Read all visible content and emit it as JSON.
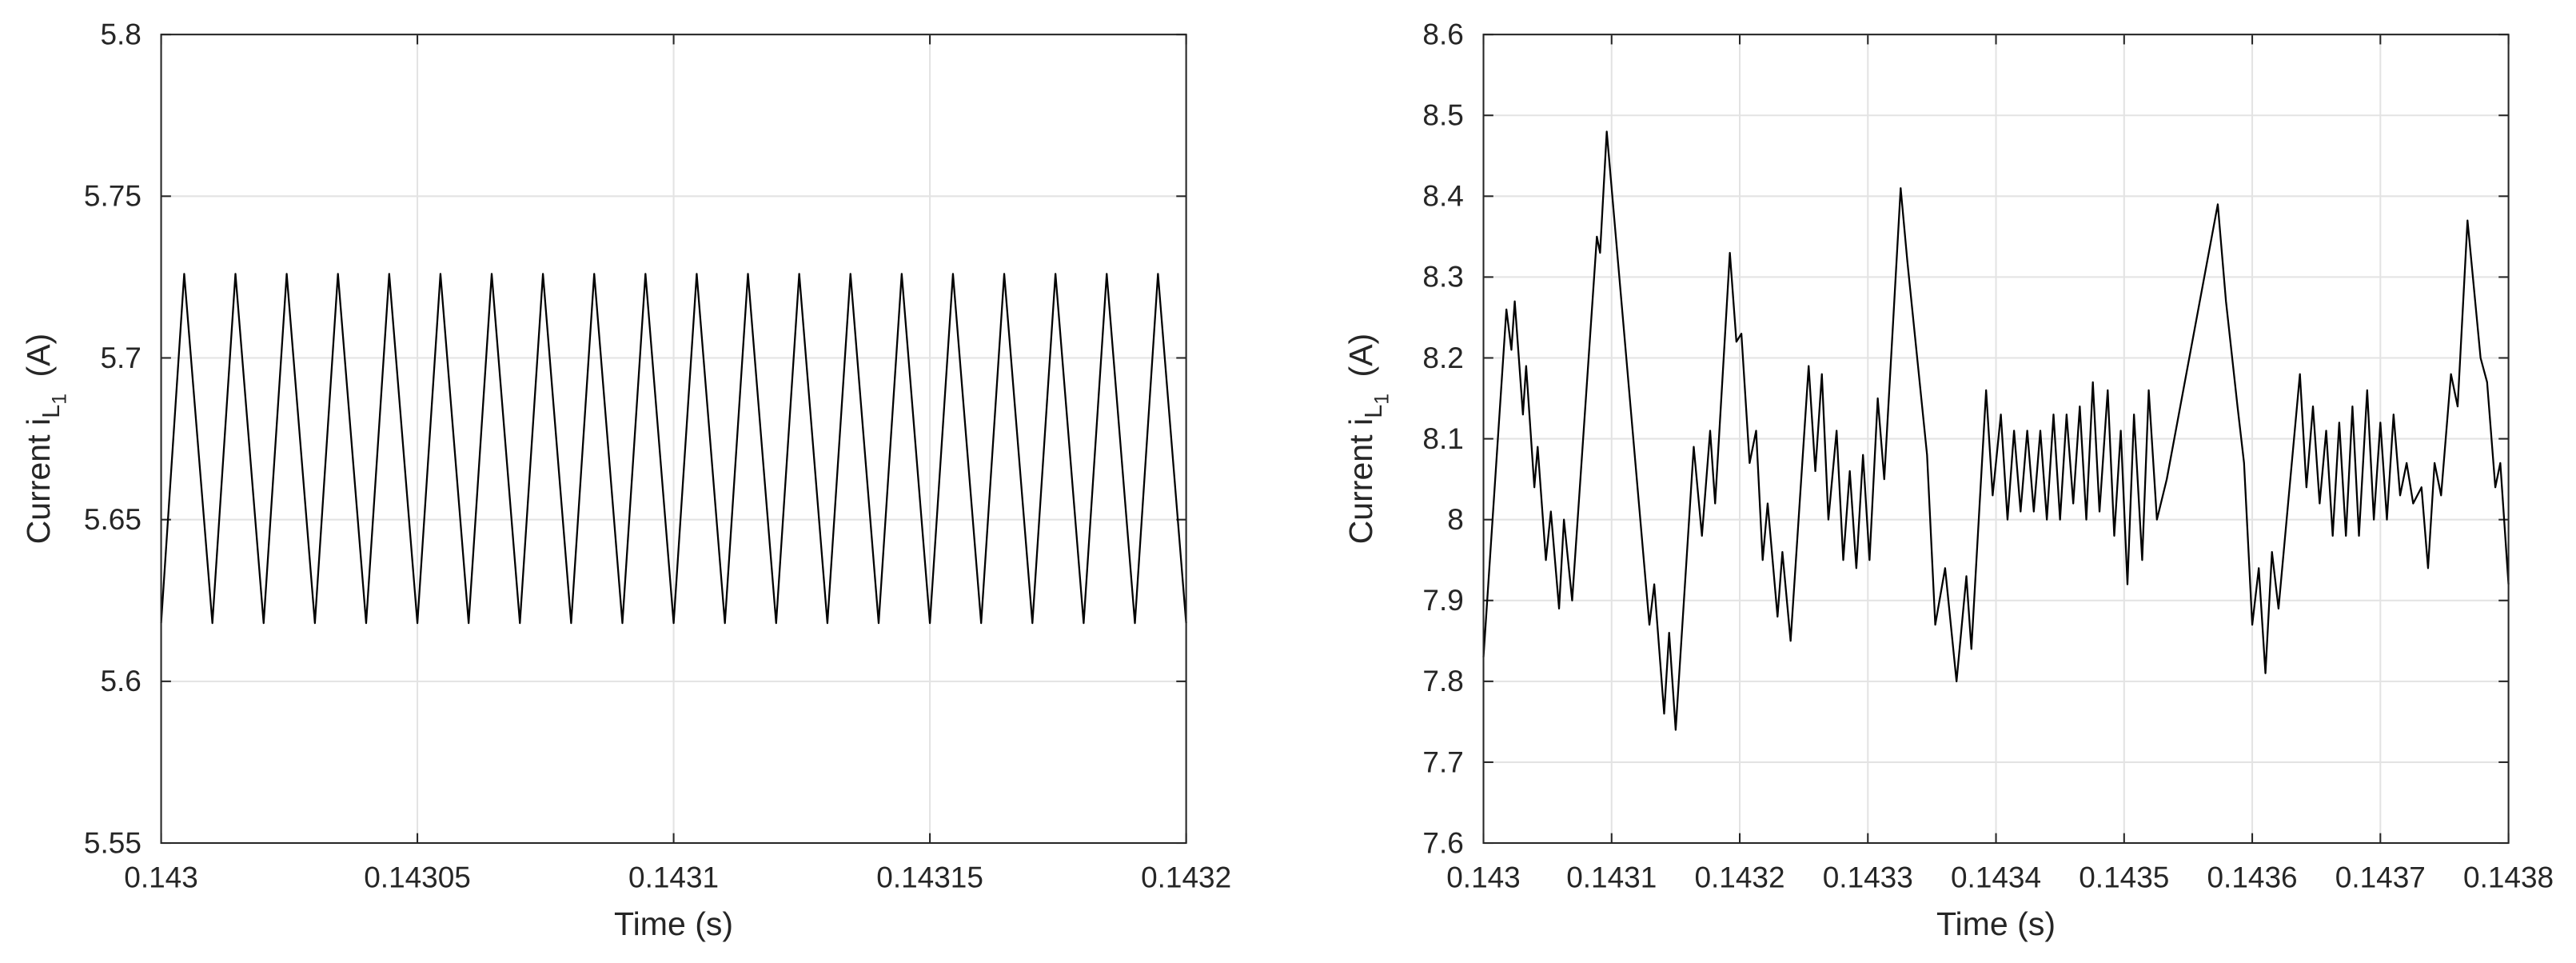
{
  "chart_data": [
    {
      "type": "line",
      "x": [
        0.143,
        0.1430045,
        0.14301,
        0.1430145,
        0.14302,
        0.1430245,
        0.14303,
        0.1430345,
        0.14304,
        0.1430445,
        0.14305,
        0.1430545,
        0.14306,
        0.1430645,
        0.14307,
        0.1430745,
        0.14308,
        0.1430845,
        0.14309,
        0.1430945,
        0.1431,
        0.1431045,
        0.14311,
        0.1431145,
        0.14312,
        0.1431245,
        0.14313,
        0.1431345,
        0.14314,
        0.1431445,
        0.14315,
        0.1431545,
        0.14316,
        0.1431645,
        0.14317,
        0.1431745,
        0.14318,
        0.1431845,
        0.14319,
        0.1431945,
        0.1432
      ],
      "series": [
        {
          "color": "#000000",
          "values": [
            5.618,
            5.726,
            5.618,
            5.726,
            5.618,
            5.726,
            5.618,
            5.726,
            5.618,
            5.726,
            5.618,
            5.726,
            5.618,
            5.726,
            5.618,
            5.726,
            5.618,
            5.726,
            5.618,
            5.726,
            5.618,
            5.726,
            5.618,
            5.726,
            5.618,
            5.726,
            5.618,
            5.726,
            5.618,
            5.726,
            5.618,
            5.726,
            5.618,
            5.726,
            5.618,
            5.726,
            5.618,
            5.726,
            5.618,
            5.726,
            5.618
          ]
        }
      ],
      "xlim": [
        0.143,
        0.1432
      ],
      "ylim": [
        5.55,
        5.8
      ],
      "xticks": [
        0.143,
        0.14305,
        0.1431,
        0.14315,
        0.1432
      ],
      "yticks": [
        5.55,
        5.6,
        5.65,
        5.7,
        5.75,
        5.8
      ],
      "xlabel": "Time (s)",
      "ylabel": [
        "Current i",
        "L",
        "1",
        "(A)"
      ],
      "grid": true
    },
    {
      "type": "line",
      "x": [
        0.143,
        0.1430179,
        0.1430218,
        0.1430244,
        0.1430308,
        0.1430333,
        0.1430397,
        0.1430423,
        0.1430487,
        0.1430526,
        0.143059,
        0.1430628,
        0.1430692,
        0.1430885,
        0.143091,
        0.1430962,
        0.1431295,
        0.1431333,
        0.143141,
        0.1431449,
        0.14315,
        0.1431641,
        0.1431705,
        0.1431769,
        0.1431808,
        0.1431923,
        0.1431974,
        0.1432013,
        0.1432077,
        0.1432128,
        0.1432179,
        0.1432218,
        0.1432295,
        0.1432333,
        0.1432397,
        0.1432538,
        0.143259,
        0.1432641,
        0.1432692,
        0.1432756,
        0.1432808,
        0.1432859,
        0.143291,
        0.1432962,
        0.1433013,
        0.1433077,
        0.1433128,
        0.1433256,
        0.1433308,
        0.1433462,
        0.1433526,
        0.1433603,
        0.1433692,
        0.1433769,
        0.1433808,
        0.1433923,
        0.1433974,
        0.1434038,
        0.143409,
        0.1434141,
        0.1434192,
        0.1434244,
        0.1434295,
        0.1434346,
        0.1434397,
        0.1434449,
        0.14345,
        0.1434551,
        0.1434603,
        0.1434654,
        0.1434705,
        0.1434756,
        0.1434808,
        0.1434872,
        0.1434923,
        0.1434974,
        0.1435026,
        0.1435077,
        0.1435141,
        0.1435192,
        0.1435256,
        0.1435333,
        0.1435731,
        0.1435795,
        0.1435885,
        0.1435936,
        0.1436,
        0.1436051,
        0.1436103,
        0.1436154,
        0.1436205,
        0.1436372,
        0.1436423,
        0.1436474,
        0.1436526,
        0.1436577,
        0.1436628,
        0.1436679,
        0.1436731,
        0.1436782,
        0.1436833,
        0.1436897,
        0.1436949,
        0.1437,
        0.1437051,
        0.1437103,
        0.1437154,
        0.1437205,
        0.1437256,
        0.1437321,
        0.1437372,
        0.1437423,
        0.1437474,
        0.1437551,
        0.1437603,
        0.143768,
        0.1437782,
        0.1437833,
        0.1437897,
        0.1437936,
        0.1438
      ],
      "series": [
        {
          "color": "#000000",
          "values": [
            7.83,
            8.26,
            8.21,
            8.27,
            8.13,
            8.19,
            8.04,
            8.09,
            7.95,
            8.01,
            7.89,
            8.0,
            7.9,
            8.35,
            8.33,
            8.48,
            7.87,
            7.92,
            7.76,
            7.86,
            7.74,
            8.09,
            7.98,
            8.11,
            8.02,
            8.33,
            8.22,
            8.23,
            8.07,
            8.11,
            7.95,
            8.02,
            7.88,
            7.96,
            7.85,
            8.19,
            8.06,
            8.18,
            8.0,
            8.11,
            7.95,
            8.06,
            7.94,
            8.08,
            7.95,
            8.15,
            8.05,
            8.41,
            8.32,
            8.08,
            7.87,
            7.94,
            7.8,
            7.93,
            7.84,
            8.16,
            8.03,
            8.13,
            8.0,
            8.11,
            8.01,
            8.11,
            8.01,
            8.11,
            8.0,
            8.13,
            8.0,
            8.13,
            8.02,
            8.14,
            8.0,
            8.17,
            8.01,
            8.16,
            7.98,
            8.11,
            7.92,
            8.13,
            7.95,
            8.16,
            8.0,
            8.05,
            8.39,
            8.27,
            8.14,
            8.07,
            7.87,
            7.94,
            7.81,
            7.96,
            7.89,
            8.18,
            8.04,
            8.14,
            8.02,
            8.11,
            7.98,
            8.12,
            7.98,
            8.14,
            7.98,
            8.16,
            8.0,
            8.12,
            8.0,
            8.13,
            8.03,
            8.07,
            8.02,
            8.04,
            7.94,
            8.07,
            8.03,
            8.18,
            8.14,
            8.37,
            8.2,
            8.17,
            8.04,
            8.07,
            7.92
          ]
        }
      ],
      "xlim": [
        0.143,
        0.1438
      ],
      "ylim": [
        7.6,
        8.6
      ],
      "xticks": [
        0.143,
        0.1431,
        0.1432,
        0.1433,
        0.1434,
        0.1435,
        0.1436,
        0.1437,
        0.1438
      ],
      "yticks": [
        7.6,
        7.7,
        7.8,
        7.9,
        8,
        8.1,
        8.2,
        8.3,
        8.4,
        8.5,
        8.6
      ],
      "xlabel": "Time (s)",
      "ylabel": [
        "Current i",
        "L",
        "1",
        "(A)"
      ],
      "grid": true
    }
  ]
}
